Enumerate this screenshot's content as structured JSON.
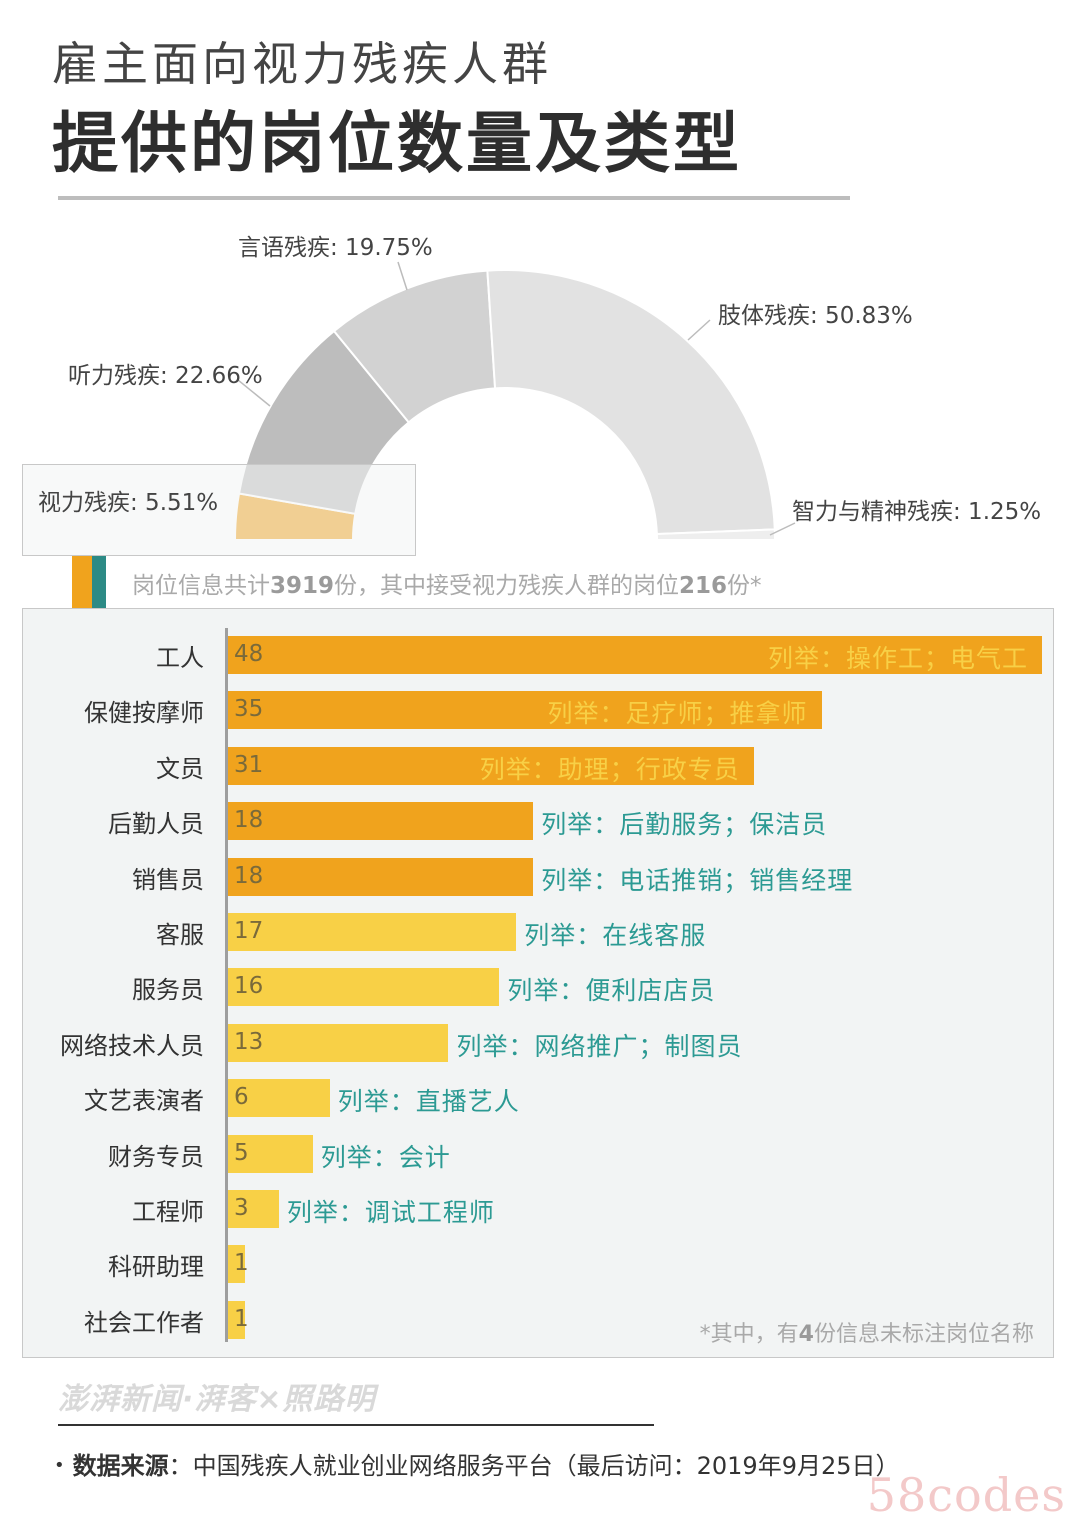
{
  "header": {
    "subtitle": "雇主面向视力残疾人群",
    "title": "提供的岗位数量及类型"
  },
  "donut": {
    "segments": [
      {
        "key": "vision",
        "label": "视力残疾: 5.51%",
        "value": 5.51,
        "color": "#f0a31d"
      },
      {
        "key": "hearing",
        "label": "听力残疾: 22.66%",
        "value": 22.66,
        "color": "#bdbdbd"
      },
      {
        "key": "speech",
        "label": "言语残疾: 19.75%",
        "value": 19.75,
        "color": "#d2d2d2"
      },
      {
        "key": "limb",
        "label": "肢体残疾: 50.83%",
        "value": 50.83,
        "color": "#e2e2e2"
      },
      {
        "key": "mental",
        "label": "智力与精神残疾: 1.25%",
        "value": 1.25,
        "color": "#eeeeee"
      }
    ]
  },
  "summary": {
    "prefix": "岗位信息共计",
    "total": "3919",
    "mid": "份，其中接受视力残疾人群的岗位",
    "count": "216",
    "suffix": "份*"
  },
  "chart_data": {
    "type": "bar",
    "orientation": "horizontal",
    "categories": [
      "工人",
      "保健按摩师",
      "文员",
      "后勤人员",
      "销售员",
      "客服",
      "服务员",
      "网络技术人员",
      "文艺表演者",
      "财务专员",
      "工程师",
      "科研助理",
      "社会工作者"
    ],
    "values": [
      48,
      35,
      31,
      18,
      18,
      17,
      16,
      13,
      6,
      5,
      3,
      1,
      1
    ],
    "value_labels": [
      "48",
      "35",
      "31",
      "18",
      "18",
      "17",
      "16",
      "13",
      "6",
      "5",
      "3",
      "1",
      "1"
    ],
    "examples": [
      "列举：操作工；电气工",
      "列举：足疗师；推拿师",
      "列举：助理；行政专员",
      "列举：后勤服务；保洁员",
      "列举：电话推销；销售经理",
      "列举：在线客服",
      "列举：便利店店员",
      "列举：网络推广；制图员",
      "列举：直播艺人",
      "列举：会计",
      "列举：调试工程师",
      "",
      ""
    ],
    "colors": {
      "high": "#f0a31d",
      "low": "#f8d046",
      "example_inside": "#f8d046",
      "example_outside": "#2c9a93"
    }
  },
  "footnote": {
    "prefix": "*其中，有",
    "num": "4",
    "suffix": "份信息未标注岗位名称"
  },
  "brand": "澎湃新闻·湃客×照路明",
  "source": {
    "bullet": "•",
    "label": "数据来源",
    "text": "：中国残疾人就业创业网络服务平台（最后访问：2019年9月25日）"
  },
  "watermark": "58codes"
}
